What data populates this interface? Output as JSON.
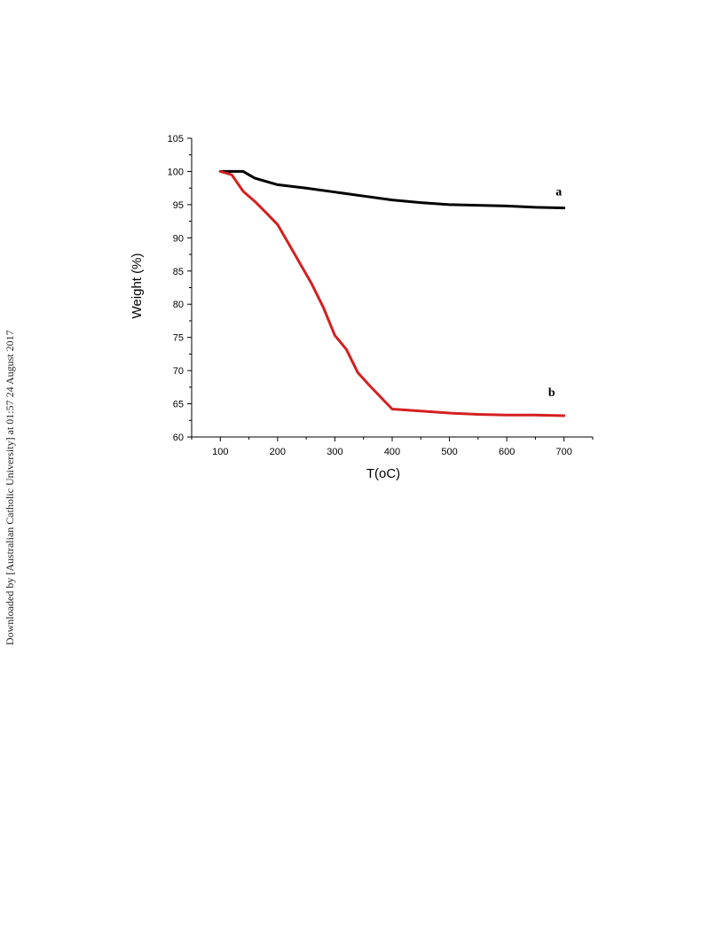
{
  "side_note": "Downloaded by [Australian Catholic University] at 01:57 24 August 2017",
  "colors": {
    "series_a": "#000000",
    "series_b": "#d42020",
    "axis": "#000000"
  },
  "chart_data": {
    "type": "line",
    "title": "",
    "xlabel": "T(oC)",
    "ylabel": "Weight (%)",
    "xlim": [
      50,
      750
    ],
    "ylim": [
      60,
      105
    ],
    "xticks": [
      100,
      200,
      300,
      400,
      500,
      600,
      700
    ],
    "yticks": [
      60,
      65,
      70,
      75,
      80,
      85,
      90,
      95,
      100,
      105
    ],
    "grid": false,
    "series": [
      {
        "name": "a",
        "color": "#000000",
        "x": [
          100,
          120,
          140,
          160,
          180,
          200,
          250,
          300,
          350,
          400,
          450,
          500,
          550,
          600,
          650,
          700
        ],
        "y": [
          100,
          100,
          100,
          99,
          98.5,
          98,
          97.5,
          96.9,
          96.3,
          95.7,
          95.3,
          95.0,
          94.9,
          94.8,
          94.6,
          94.5
        ]
      },
      {
        "name": "b",
        "color": "#d42020",
        "x": [
          100,
          120,
          140,
          160,
          180,
          200,
          220,
          240,
          260,
          280,
          300,
          320,
          340,
          360,
          380,
          400,
          450,
          500,
          550,
          600,
          650,
          700
        ],
        "y": [
          100,
          99.5,
          97,
          95.5,
          93.8,
          92,
          89,
          86,
          83,
          79.5,
          75.3,
          73.2,
          69.7,
          67.8,
          66,
          64.2,
          63.9,
          63.6,
          63.4,
          63.3,
          63.3,
          63.2
        ]
      }
    ]
  }
}
